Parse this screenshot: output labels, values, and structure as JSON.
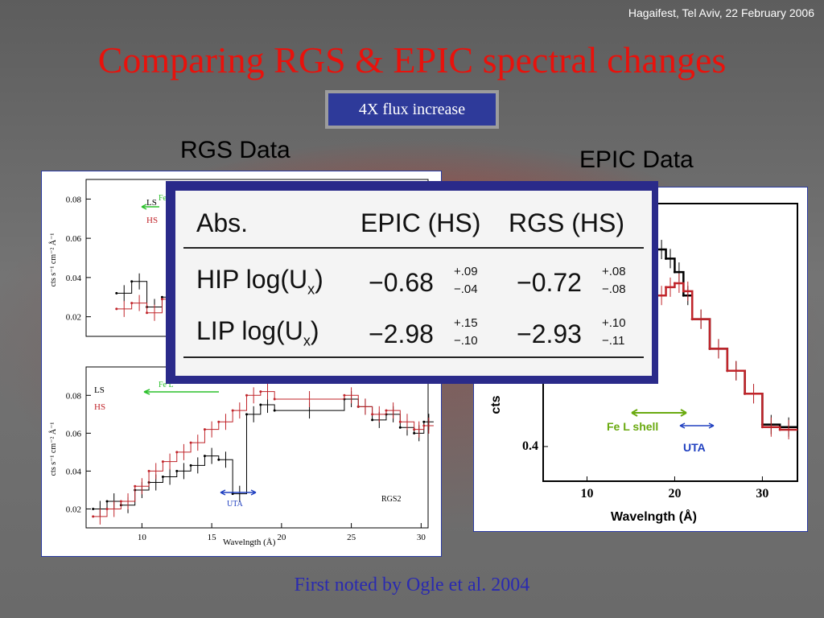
{
  "header": {
    "conference": "Hagaifest, Tel Aviv, 22 February 2006",
    "title": "Comparing RGS &  EPIC spectral changes",
    "badge": "4X flux increase"
  },
  "labels": {
    "rgs": "RGS Data",
    "epic": "EPIC Data"
  },
  "footer": "First noted by Ogle et al. 2004",
  "colors": {
    "title": "#e8120c",
    "badge_bg": "#2e3a9a",
    "hs_series": "#c0242a",
    "ls_series": "#000000",
    "fe_arrow": "#2cc02c",
    "uta_arrow": "#2040c0",
    "fe_epic": "#6aaa10"
  },
  "table": {
    "headers": [
      "Abs.",
      "EPIC (HS)",
      "RGS (HS)"
    ],
    "rows": [
      {
        "label": "HIP log(U",
        "sub": "x",
        "close": ")",
        "epic": "−0.68",
        "epic_up": "+.09",
        "epic_dn": "−.04",
        "rgs": "−0.72",
        "rgs_up": "+.08",
        "rgs_dn": "−.08"
      },
      {
        "label": "LIP log(U",
        "sub": "x",
        "close": ")",
        "epic": "−2.98",
        "epic_up": "+.15",
        "epic_dn": "−.10",
        "rgs": "−2.93",
        "rgs_up": "+.10",
        "rgs_dn": "−.11"
      }
    ]
  },
  "chart_data": [
    {
      "type": "line",
      "title": "",
      "panel": "rgs-top",
      "xlabel": "",
      "ylabel": "cts s⁻¹ cm⁻² Å⁻¹",
      "xlim": [
        6,
        10.5
      ],
      "ylim": [
        0.01,
        0.09
      ],
      "yticks": [
        "0.08",
        "0.06",
        "0.04",
        "0.02"
      ],
      "xticks": [
        "10"
      ],
      "legend": [
        "LS",
        "HS"
      ],
      "annotation": "Fe",
      "series": [
        {
          "name": "LS",
          "x": [
            6.4,
            6.6,
            6.8,
            7.0,
            7.2,
            7.4,
            7.6,
            7.8,
            8.0,
            8.2,
            8.4,
            8.6,
            8.8,
            9.0,
            9.2,
            9.4,
            9.6,
            9.8,
            10.0,
            10.2
          ],
          "values": [
            0.032,
            0.038,
            0.025,
            0.03,
            0.036,
            0.028,
            0.033,
            0.04,
            0.027,
            0.035,
            0.03,
            0.038,
            0.042,
            0.036,
            0.047,
            0.038,
            0.044,
            0.041,
            0.039,
            0.042
          ]
        },
        {
          "name": "HS",
          "x": [
            6.4,
            6.6,
            6.8,
            7.0,
            7.2,
            7.4,
            7.6,
            7.8,
            8.0,
            8.2,
            8.4,
            8.6,
            8.8,
            9.0,
            9.2,
            9.4,
            9.6,
            9.8,
            10.0,
            10.2
          ],
          "values": [
            0.024,
            0.027,
            0.022,
            0.029,
            0.025,
            0.028,
            0.024,
            0.031,
            0.033,
            0.028,
            0.036,
            0.03,
            0.034,
            0.041,
            0.038,
            0.045,
            0.052,
            0.05,
            0.054,
            0.02
          ]
        }
      ]
    },
    {
      "type": "line",
      "title": "",
      "panel": "rgs-bottom",
      "xlabel": "Wavelngth (Å)",
      "ylabel": "cts s⁻¹ cm⁻² Å⁻¹",
      "xlim": [
        6,
        30.5
      ],
      "ylim": [
        0.01,
        0.095
      ],
      "yticks": [
        "0.08",
        "0.06",
        "0.04",
        "0.02"
      ],
      "xticks": [
        "10",
        "15",
        "20",
        "25",
        "30"
      ],
      "legend": [
        "LS",
        "HS"
      ],
      "annotations": [
        "Fe L",
        "UTA",
        "RGS2"
      ],
      "series": [
        {
          "name": "LS",
          "x": [
            6.5,
            7.5,
            8.5,
            9.5,
            10.5,
            11.5,
            12.5,
            13.5,
            14.5,
            15.5,
            16.5,
            17.5,
            18.5,
            19.5,
            24.5,
            25.5,
            26.5,
            27.5,
            28.5,
            29.5,
            30.2
          ],
          "values": [
            0.02,
            0.024,
            0.022,
            0.03,
            0.034,
            0.037,
            0.04,
            0.043,
            0.048,
            0.046,
            0.028,
            0.07,
            0.075,
            0.072,
            0.078,
            0.074,
            0.067,
            0.07,
            0.063,
            0.06,
            0.066
          ]
        },
        {
          "name": "HS",
          "x": [
            6.5,
            7.5,
            8.5,
            9.5,
            10.5,
            11.5,
            12.5,
            13.5,
            14.5,
            15.5,
            16.5,
            17.5,
            18.5,
            19.5,
            24.5,
            25.5,
            26.5,
            27.5,
            28.5,
            29.5,
            30.2
          ],
          "values": [
            0.016,
            0.02,
            0.024,
            0.032,
            0.04,
            0.045,
            0.05,
            0.055,
            0.062,
            0.066,
            0.072,
            0.08,
            0.082,
            0.078,
            0.08,
            0.074,
            0.07,
            0.072,
            0.066,
            0.062,
            0.064
          ]
        }
      ]
    },
    {
      "type": "line",
      "title": "",
      "panel": "epic",
      "xlabel": "Wavelngth (Å)",
      "ylabel": "cts",
      "xlim": [
        5,
        34
      ],
      "ylim": [
        0.3,
        3.0
      ],
      "log_y": true,
      "yticks": [
        "0.4"
      ],
      "xticks": [
        "10",
        "20",
        "30"
      ],
      "annotations": [
        "Fe L shell",
        "UTA"
      ],
      "series": [
        {
          "name": "LS",
          "x": [
            10,
            11,
            12,
            13,
            14,
            15,
            16,
            17,
            18,
            19,
            20,
            21,
            22,
            24,
            26,
            28,
            30,
            32
          ],
          "values": [
            1.6,
            1.65,
            1.7,
            1.75,
            1.9,
            2.0,
            2.1,
            2.2,
            2.05,
            1.9,
            1.7,
            1.4,
            1.15,
            0.9,
            0.75,
            0.62,
            0.48,
            0.47
          ]
        },
        {
          "name": "HS",
          "x": [
            10,
            11,
            12,
            13,
            14,
            15,
            16,
            17,
            18,
            19,
            20,
            21,
            22,
            24,
            26,
            28,
            30,
            32
          ],
          "values": [
            0.9,
            0.95,
            1.0,
            1.0,
            1.05,
            1.08,
            1.1,
            1.3,
            1.4,
            1.5,
            1.55,
            1.45,
            1.15,
            0.9,
            0.75,
            0.62,
            0.47,
            0.46
          ]
        }
      ]
    }
  ]
}
